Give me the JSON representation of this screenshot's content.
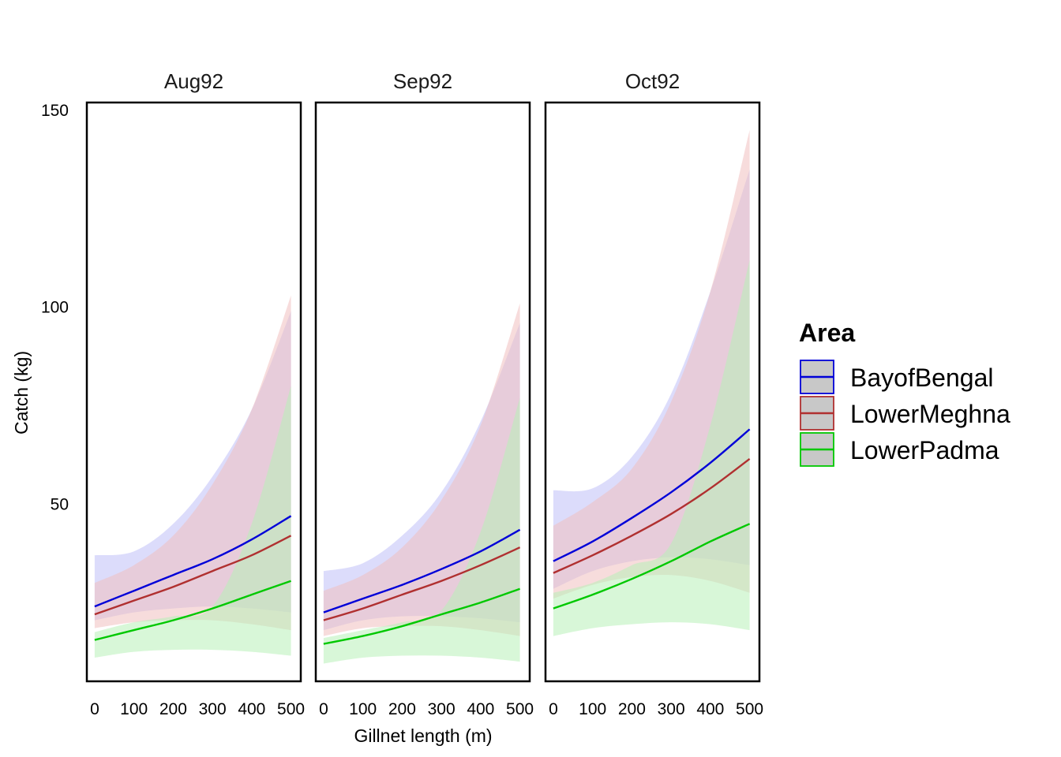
{
  "chart_data": {
    "type": "line",
    "xlabel": "Gillnet length (m)",
    "ylabel": "Catch (kg)",
    "x_ticks": [
      0,
      100,
      200,
      300,
      400,
      500
    ],
    "y_ticks": [
      50,
      100,
      150
    ],
    "xlim": [
      -20,
      525
    ],
    "ylim": [
      5,
      152
    ],
    "grid": false,
    "legend": {
      "title": "Area",
      "position": "right",
      "entries": [
        {
          "name": "BayofBengal",
          "color": "#0000d8",
          "fill": "#c0c0f8"
        },
        {
          "name": "LowerMeghna",
          "color": "#b03030",
          "fill": "#f0c0c0"
        },
        {
          "name": "LowerPadma",
          "color": "#00c800",
          "fill": "#b8f0b8"
        }
      ]
    },
    "panels": [
      {
        "title": "Aug92",
        "series": [
          {
            "name": "BayofBengal",
            "x": [
              0,
              100,
              200,
              300,
              400,
              500
            ],
            "y": [
              24,
              28,
              32,
              36,
              41,
              47
            ],
            "lower": [
              20.5,
              22.5,
              23.5,
              24,
              23.5,
              22.5
            ],
            "upper": [
              37,
              38,
              45,
              57,
              74,
              99
            ]
          },
          {
            "name": "LowerMeghna",
            "x": [
              0,
              100,
              200,
              300,
              400,
              500
            ],
            "y": [
              22,
              25.5,
              29,
              33,
              37,
              42
            ],
            "lower": [
              18.5,
              20,
              20.5,
              20.5,
              19.5,
              18
            ],
            "upper": [
              30,
              34.5,
              42,
              55,
              74,
              103
            ]
          },
          {
            "name": "LowerPadma",
            "x": [
              0,
              100,
              200,
              300,
              400,
              500
            ],
            "y": [
              15.5,
              18,
              20.5,
              23.5,
              27,
              30.5
            ],
            "lower": [
              11,
              12.5,
              13,
              13,
              12.5,
              11.5
            ],
            "upper": [
              17.5,
              20,
              21.5,
              24,
              45,
              80
            ]
          }
        ]
      },
      {
        "title": "Sep92",
        "series": [
          {
            "name": "BayofBengal",
            "x": [
              0,
              100,
              200,
              300,
              400,
              500
            ],
            "y": [
              22.5,
              26,
              29.5,
              33.5,
              38,
              43.5
            ],
            "lower": [
              18,
              20.5,
              21.5,
              21.5,
              21,
              20
            ],
            "upper": [
              33,
              35,
              42,
              53,
              71,
              96
            ]
          },
          {
            "name": "LowerMeghna",
            "x": [
              0,
              100,
              200,
              300,
              400,
              500
            ],
            "y": [
              20.5,
              23.5,
              27,
              30.5,
              34.5,
              39
            ],
            "lower": [
              16.5,
              18.5,
              19,
              19,
              18,
              16.5
            ],
            "upper": [
              28,
              32,
              39,
              51,
              70,
              101
            ]
          },
          {
            "name": "LowerPadma",
            "x": [
              0,
              100,
              200,
              300,
              400,
              500
            ],
            "y": [
              14.5,
              16.5,
              19,
              22,
              25,
              28.5
            ],
            "lower": [
              9.5,
              11,
              11.5,
              11.5,
              11,
              10
            ],
            "upper": [
              16,
              18,
              20,
              23,
              43,
              77
            ]
          }
        ]
      },
      {
        "title": "Oct92",
        "series": [
          {
            "name": "BayofBengal",
            "x": [
              0,
              100,
              200,
              300,
              400,
              500
            ],
            "y": [
              35.5,
              40.5,
              46.5,
              53,
              60.5,
              69
            ],
            "lower": [
              28.5,
              33,
              35.5,
              36.5,
              36,
              34.5
            ],
            "upper": [
              53.5,
              54,
              62,
              78,
              104,
              135
            ]
          },
          {
            "name": "LowerMeghna",
            "x": [
              0,
              100,
              200,
              300,
              400,
              500
            ],
            "y": [
              32.5,
              37,
              42,
              47.5,
              54,
              61.5
            ],
            "lower": [
              26,
              29.5,
              31.5,
              32,
              30.5,
              27.5
            ],
            "upper": [
              44.5,
              50.5,
              59,
              76,
              104,
              145
            ]
          },
          {
            "name": "LowerPadma",
            "x": [
              0,
              100,
              200,
              300,
              400,
              500
            ],
            "y": [
              23.5,
              27,
              31,
              35.5,
              40.5,
              45
            ],
            "lower": [
              16.5,
              18.5,
              19.5,
              20,
              19.5,
              18
            ],
            "upper": [
              27.5,
              30,
              34.5,
              40,
              70,
              112
            ]
          }
        ]
      }
    ]
  }
}
